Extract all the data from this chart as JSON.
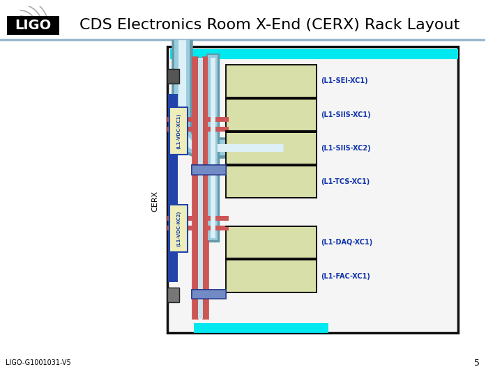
{
  "title": "CDS Electronics Room X-End (CERX) Rack Layout",
  "title_fontsize": 16,
  "background_color": "#ffffff",
  "rack_labels": [
    "(L1-SEI-XC1)",
    "(L1-SIIS-XC1)",
    "(L1-SIIS-XC2)",
    "(L1-TCS-XC1)",
    "(L1-DAQ-XC1)",
    "(L1-FAC-XC1)"
  ],
  "left_labels": [
    "(L1-VDC-XC1)",
    "(L1-VDC-XC2)"
  ],
  "rack_box_color": "#d8dfa8",
  "rack_box_edge": "#000000",
  "cyan_color": "#00e8f0",
  "blue_rail_color": "#2244aa",
  "red_pipe_color": "#cc5555",
  "teal_pipe_outer": "#6699aa",
  "teal_pipe_mid": "#88bbcc",
  "teal_pipe_inner": "#cce8f0",
  "connector_blue": "#4466bb",
  "label_color": "#1133aa",
  "label_fontsize": 7,
  "footer_text": "LIGO-G1001031-V5",
  "page_num": "5",
  "cerx_label": "CERX"
}
